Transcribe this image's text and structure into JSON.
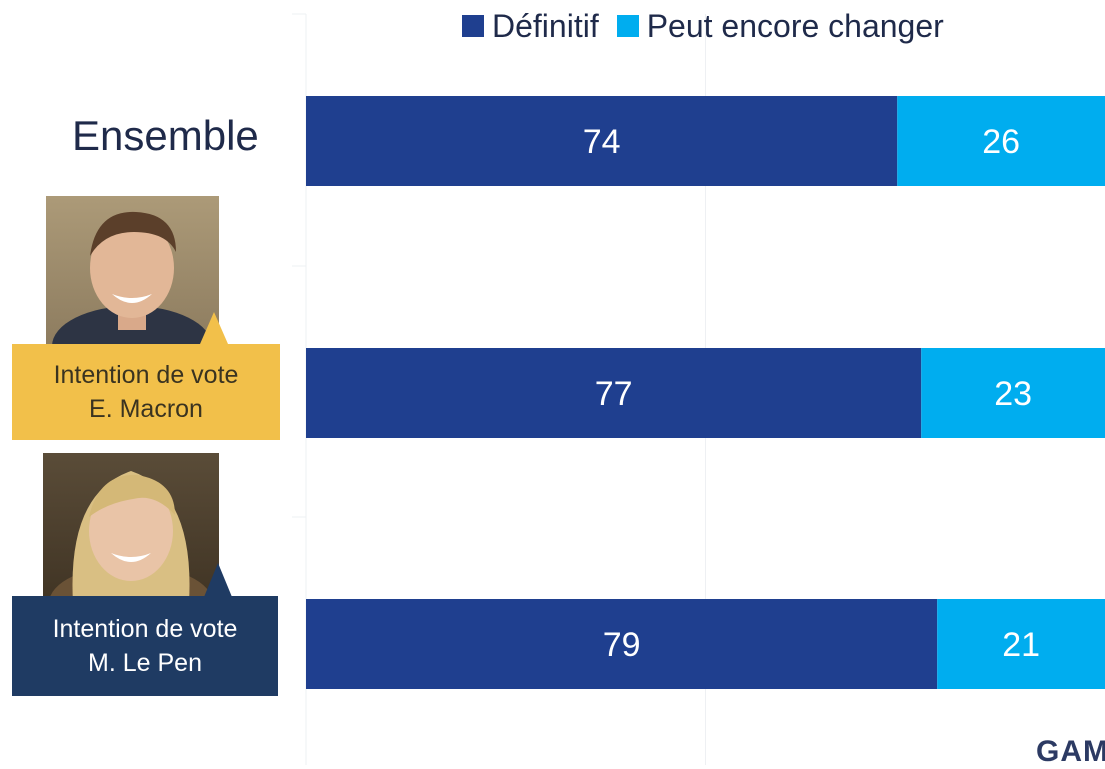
{
  "legend": [
    {
      "label": "Définitif",
      "color": "#1f3f8f"
    },
    {
      "label": "Peut encore changer",
      "color": "#00adef"
    }
  ],
  "rows": {
    "ensemble": "Ensemble",
    "macron": {
      "line1": "Intention de vote",
      "line2": "E. Macron"
    },
    "lepen": {
      "line1": "Intention de vote",
      "line2": "M. Le Pen"
    }
  },
  "logo": "GAM",
  "chart_data": {
    "type": "bar",
    "orientation": "horizontal",
    "stacked": true,
    "categories": [
      "Ensemble",
      "Intention de vote E. Macron",
      "Intention de vote M. Le Pen"
    ],
    "series": [
      {
        "name": "Définitif",
        "values": [
          74,
          77,
          79
        ],
        "color": "#1f3f8f"
      },
      {
        "name": "Peut encore changer",
        "values": [
          26,
          23,
          21
        ],
        "color": "#00adef"
      }
    ],
    "xlim": [
      0,
      100
    ],
    "legend": "top",
    "grid": true
  }
}
